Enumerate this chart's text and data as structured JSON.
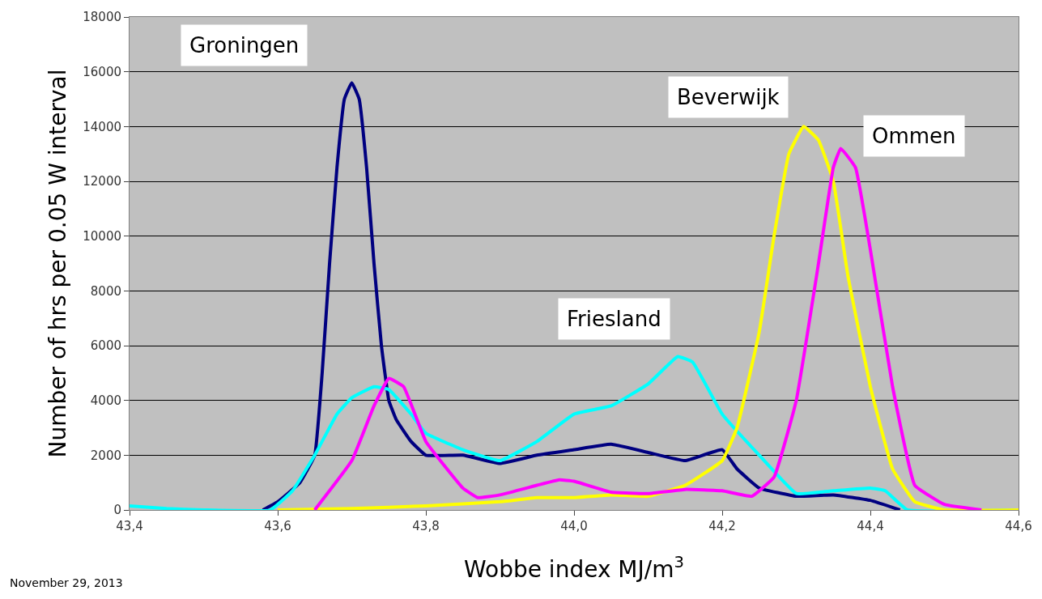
{
  "chart_data": {
    "type": "line",
    "xlabel": "Wobbe index MJ/m$^{3}$",
    "ylabel": "Number of hrs per 0.05 W interval",
    "annotations": [
      "November 29, 2013"
    ],
    "xlim": [
      43.4,
      44.6
    ],
    "xticks": [
      {
        "value": 43.4,
        "label": "43,4"
      },
      {
        "value": 43.6,
        "label": "43,6"
      },
      {
        "value": 43.8,
        "label": "43,8"
      },
      {
        "value": 44.0,
        "label": "44,0"
      },
      {
        "value": 44.2,
        "label": "44,2"
      },
      {
        "value": 44.4,
        "label": "44,4"
      },
      {
        "value": 44.6,
        "label": "44,6"
      }
    ],
    "ylim": [
      0,
      18000
    ],
    "yticks": [
      0,
      2000,
      4000,
      6000,
      8000,
      10000,
      12000,
      14000,
      16000,
      18000
    ],
    "grid": "y",
    "legend": false,
    "marker": "none",
    "line_style": "solid",
    "series": [
      {
        "name": "Groningen",
        "color": "#000080",
        "x": [
          43.58,
          43.6,
          43.63,
          43.65,
          43.66,
          43.67,
          43.68,
          43.69,
          43.7,
          43.71,
          43.72,
          43.73,
          43.74,
          43.75,
          43.76,
          43.78,
          43.8,
          43.85,
          43.9,
          43.95,
          44.0,
          44.05,
          44.1,
          44.15,
          44.2,
          44.22,
          44.25,
          44.3,
          44.35,
          44.4,
          44.44
        ],
        "values": [
          0,
          300,
          1000,
          2000,
          5000,
          9000,
          12500,
          15000,
          15600,
          15000,
          12500,
          9000,
          6000,
          4000,
          3300,
          2500,
          2000,
          2000,
          1700,
          2000,
          2200,
          2400,
          2100,
          1800,
          2200,
          1500,
          800,
          500,
          550,
          350,
          0
        ]
      },
      {
        "name": "Friesland",
        "color": "#00ffff",
        "x": [
          43.4,
          43.45,
          43.5,
          43.59,
          43.62,
          43.65,
          43.68,
          43.7,
          43.73,
          43.75,
          43.78,
          43.8,
          43.85,
          43.9,
          43.95,
          44.0,
          44.05,
          44.1,
          44.14,
          44.16,
          44.2,
          44.25,
          44.3,
          44.35,
          44.4,
          44.42,
          44.45,
          44.6
        ],
        "values": [
          150,
          50,
          0,
          0,
          700,
          2000,
          3500,
          4100,
          4500,
          4400,
          3500,
          2800,
          2200,
          1800,
          2500,
          3500,
          3800,
          4600,
          5600,
          5400,
          3500,
          2000,
          600,
          700,
          800,
          700,
          0,
          0
        ]
      },
      {
        "name": "Beverwijk",
        "color": "#ffff00",
        "x": [
          43.6,
          43.7,
          43.8,
          43.9,
          43.95,
          44.0,
          44.05,
          44.1,
          44.15,
          44.2,
          44.22,
          44.25,
          44.27,
          44.29,
          44.31,
          44.33,
          44.35,
          44.37,
          44.4,
          44.43,
          44.46,
          44.5,
          44.6
        ],
        "values": [
          0,
          50,
          150,
          300,
          450,
          450,
          550,
          500,
          900,
          1800,
          3000,
          6500,
          10000,
          13000,
          14000,
          13500,
          12000,
          8500,
          4500,
          1500,
          300,
          0,
          0
        ]
      },
      {
        "name": "Ommen",
        "color": "#ff00ff",
        "x": [
          43.65,
          43.7,
          43.73,
          43.75,
          43.77,
          43.8,
          43.85,
          43.87,
          43.9,
          43.95,
          43.98,
          44.0,
          44.05,
          44.1,
          44.15,
          44.2,
          44.24,
          44.27,
          44.3,
          44.33,
          44.35,
          44.36,
          44.38,
          44.4,
          44.43,
          44.46,
          44.5,
          44.55
        ],
        "values": [
          0,
          1800,
          3800,
          4800,
          4500,
          2500,
          800,
          450,
          550,
          900,
          1100,
          1050,
          650,
          600,
          750,
          700,
          500,
          1200,
          4000,
          9000,
          12500,
          13200,
          12500,
          9500,
          4500,
          900,
          200,
          0
        ]
      }
    ]
  }
}
